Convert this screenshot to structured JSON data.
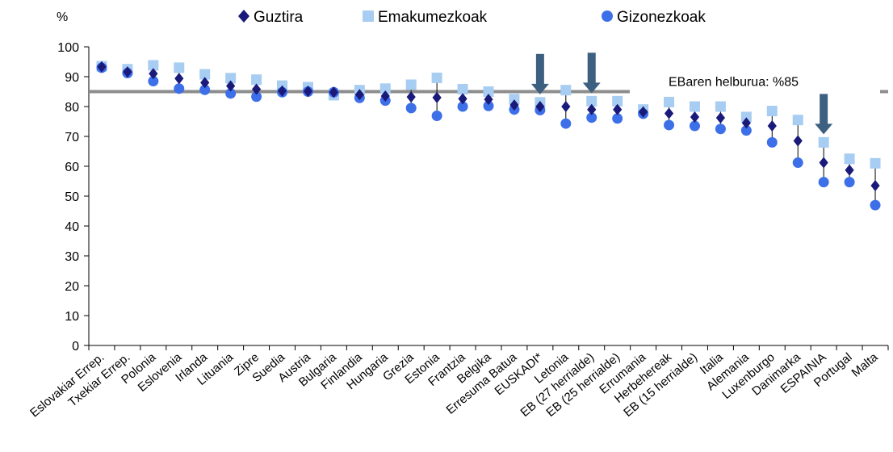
{
  "chart_data": {
    "type": "scatter",
    "ylabel": "%",
    "ylim": [
      0,
      100
    ],
    "yticks": [
      0,
      10,
      20,
      30,
      40,
      50,
      60,
      70,
      80,
      90,
      100
    ],
    "categories": [
      "Eslovakiar Errep.",
      "Txekiar Errep.",
      "Polonia",
      "Eslovenia",
      "Irlanda",
      "Lituania",
      "Zipre",
      "Suedia",
      "Austria",
      "Bulgaria",
      "Finlandia",
      "Hungaria",
      "Grezia",
      "Estonia",
      "Frantzia",
      "Belgika",
      "Erresuma Batua",
      "EUSKADI*",
      "Letonia",
      "EB (27 herrialde)",
      "EB (25 herrialde)",
      "Errumania",
      "Herbehereak",
      "EB (15 herrialde)",
      "Italia",
      "Alemania",
      "Luxenburgo",
      "Danimarka",
      "ESPAINIA",
      "Portugal",
      "Malta"
    ],
    "series": [
      {
        "name": "Guztira",
        "color": "#1a1a7a",
        "marker": "diamond",
        "values": [
          93.3,
          91.6,
          91.0,
          89.4,
          88.0,
          86.9,
          85.8,
          85.2,
          85.1,
          84.8,
          84.0,
          83.5,
          83.2,
          83.0,
          82.6,
          82.4,
          80.5,
          80.0,
          80.0,
          79.0,
          79.0,
          78.2,
          77.7,
          76.5,
          76.2,
          74.5,
          73.5,
          68.5,
          61.2,
          58.7,
          53.5
        ]
      },
      {
        "name": "Emakumezkoak",
        "color": "#a8cdf2",
        "marker": "square",
        "values": [
          93.5,
          92.5,
          93.8,
          93.0,
          90.8,
          89.5,
          89.0,
          87.0,
          86.5,
          83.8,
          85.5,
          86.0,
          87.3,
          89.6,
          85.8,
          85.0,
          82.5,
          81.4,
          85.5,
          81.8,
          81.8,
          79.0,
          81.5,
          80.0,
          80.0,
          76.5,
          78.5,
          75.5,
          68.0,
          62.5,
          61.0
        ]
      },
      {
        "name": "Gizonezkoak",
        "color": "#3d6fe8",
        "marker": "circle",
        "values": [
          93.0,
          91.2,
          88.5,
          86.0,
          85.6,
          84.4,
          83.3,
          84.8,
          85.0,
          84.8,
          82.9,
          82.0,
          79.5,
          76.9,
          80.0,
          80.2,
          79.0,
          78.8,
          74.3,
          76.3,
          76.0,
          77.6,
          73.8,
          73.5,
          72.5,
          72.0,
          68.0,
          61.2,
          54.7,
          54.7,
          47.0
        ]
      }
    ],
    "target": {
      "value": 85,
      "label": "EBaren  helburua: %85"
    },
    "arrows": [
      "EUSKADI*",
      "EB (27 herrialde)",
      "ESPAINIA"
    ],
    "legend": "top",
    "grid": false
  }
}
